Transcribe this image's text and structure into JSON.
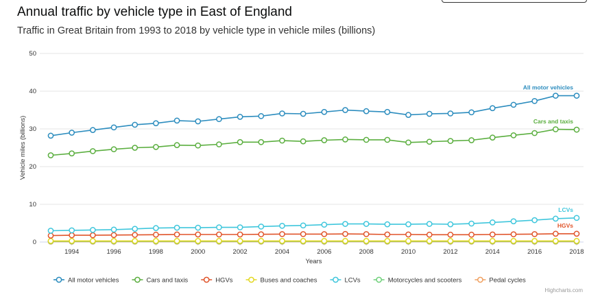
{
  "title": "Annual traffic by vehicle type in East of England",
  "subtitle": "Traffic in Great Britain from 1993 to 2018 by vehicle type in vehicle miles (billions)",
  "credit": "Highcharts.com",
  "chart_data": {
    "type": "line",
    "title": "Annual traffic by vehicle type in East of England",
    "subtitle": "Traffic in Great Britain from 1993 to 2018 by vehicle type in vehicle miles (billions)",
    "xlabel": "Years",
    "ylabel": "Vehicle miles (billions)",
    "x": [
      1993,
      1994,
      1995,
      1996,
      1997,
      1998,
      1999,
      2000,
      2001,
      2002,
      2003,
      2004,
      2005,
      2006,
      2007,
      2008,
      2009,
      2010,
      2011,
      2012,
      2013,
      2014,
      2015,
      2016,
      2017,
      2018
    ],
    "xticks": [
      1994,
      1996,
      1998,
      2000,
      2002,
      2004,
      2006,
      2008,
      2010,
      2012,
      2014,
      2016,
      2018
    ],
    "ylim": [
      0,
      50
    ],
    "yticks": [
      0,
      10,
      20,
      30,
      40,
      50
    ],
    "grid": true,
    "legend_position": "bottom",
    "series": [
      {
        "name": "All motor vehicles",
        "color": "#2b8cbe",
        "label": "All motor vehicles",
        "values": [
          28.2,
          29.0,
          29.7,
          30.4,
          31.1,
          31.5,
          32.2,
          32.0,
          32.6,
          33.2,
          33.4,
          34.1,
          34.0,
          34.5,
          35.0,
          34.7,
          34.5,
          33.7,
          34.0,
          34.1,
          34.4,
          35.5,
          36.4,
          37.4,
          38.8,
          38.8
        ]
      },
      {
        "name": "Cars and taxis",
        "color": "#5aae3e",
        "label": "Cars and taxis",
        "values": [
          23.0,
          23.5,
          24.1,
          24.6,
          25.0,
          25.2,
          25.7,
          25.6,
          25.9,
          26.5,
          26.5,
          26.9,
          26.7,
          27.0,
          27.2,
          27.1,
          27.1,
          26.4,
          26.6,
          26.8,
          27.0,
          27.7,
          28.3,
          28.9,
          29.9,
          29.8
        ]
      },
      {
        "name": "HGVs",
        "color": "#e0542a",
        "label": "HGVs",
        "values": [
          1.7,
          1.8,
          1.8,
          1.85,
          1.9,
          1.95,
          2.0,
          2.0,
          2.0,
          2.0,
          2.05,
          2.1,
          2.1,
          2.1,
          2.15,
          2.1,
          2.0,
          2.0,
          1.95,
          1.95,
          1.95,
          2.0,
          2.05,
          2.1,
          2.2,
          2.2
        ]
      },
      {
        "name": "Buses and coaches",
        "color": "#e3d822",
        "label": "",
        "values": [
          0.3,
          0.3,
          0.3,
          0.3,
          0.3,
          0.3,
          0.3,
          0.3,
          0.3,
          0.3,
          0.3,
          0.3,
          0.3,
          0.3,
          0.3,
          0.3,
          0.3,
          0.3,
          0.3,
          0.3,
          0.3,
          0.3,
          0.3,
          0.3,
          0.3,
          0.3
        ]
      },
      {
        "name": "LCVs",
        "color": "#3ec6dc",
        "label": "LCVs",
        "values": [
          3.0,
          3.1,
          3.2,
          3.3,
          3.5,
          3.7,
          3.8,
          3.8,
          3.9,
          3.9,
          4.1,
          4.3,
          4.4,
          4.6,
          4.8,
          4.8,
          4.7,
          4.7,
          4.8,
          4.7,
          4.9,
          5.2,
          5.5,
          5.8,
          6.2,
          6.4
        ]
      },
      {
        "name": "Motorcycles and scooters",
        "color": "#6fd07a",
        "label": "",
        "values": [
          0.2,
          0.2,
          0.2,
          0.2,
          0.2,
          0.2,
          0.2,
          0.2,
          0.2,
          0.2,
          0.2,
          0.2,
          0.2,
          0.2,
          0.2,
          0.2,
          0.2,
          0.2,
          0.2,
          0.2,
          0.2,
          0.2,
          0.2,
          0.2,
          0.2,
          0.2
        ]
      },
      {
        "name": "Pedal cycles",
        "color": "#f0a060",
        "label": "",
        "values": [
          0.1,
          0.1,
          0.1,
          0.1,
          0.1,
          0.1,
          0.1,
          0.1,
          0.1,
          0.1,
          0.1,
          0.1,
          0.1,
          0.1,
          0.1,
          0.1,
          0.1,
          0.1,
          0.1,
          0.1,
          0.1,
          0.1,
          0.1,
          0.1,
          0.1,
          0.1
        ]
      }
    ]
  }
}
